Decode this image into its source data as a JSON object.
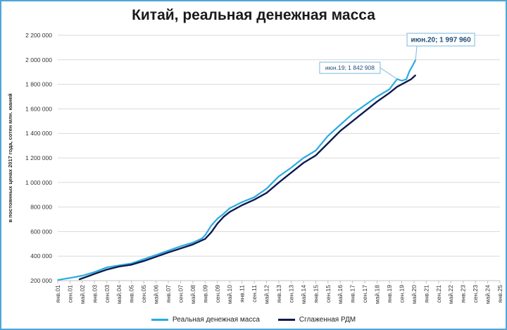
{
  "title": "Китай, реальная денежная масса",
  "colors": {
    "frame": "#4ea6d8",
    "series_raw": "#29abe2",
    "series_smooth": "#0d1b4f",
    "annotation_text": "#1f4e79"
  },
  "chart_data": {
    "type": "line",
    "title": "Китай, реальная денежная масса",
    "ylabel": "в постоянных ценах 2017 года, сотен млн. юаней",
    "xlabel": "",
    "ylim": [
      200000,
      2200000
    ],
    "y_ticks": [
      "200 000",
      "400 000",
      "600 000",
      "800 000",
      "1 000 000",
      "1 200 000",
      "1 400 000",
      "1 600 000",
      "1 800 000",
      "2 000 000",
      "2 200 000"
    ],
    "x_range": [
      "2001-01",
      "2025-01"
    ],
    "x_ticks": [
      "янв.01",
      "сен.01",
      "май.02",
      "янв.03",
      "сен.03",
      "май.04",
      "янв.05",
      "сен.05",
      "май.06",
      "янв.07",
      "сен.07",
      "май.08",
      "янв.09",
      "сен.09",
      "май.10",
      "янв.11",
      "сен.11",
      "май.12",
      "янв.13",
      "сен.13",
      "май.14",
      "янв.15",
      "сен.15",
      "май.16",
      "янв.17",
      "сен.17",
      "май.18",
      "янв.19",
      "сен.19",
      "май.20",
      "янв.21",
      "сен.21",
      "май.22",
      "янв.23",
      "сен.23",
      "май.24",
      "янв.25"
    ],
    "grid": "horizontal",
    "legend_position": "bottom",
    "series": [
      {
        "name": "Реальная денежная масса",
        "color": "#29abe2",
        "points": [
          [
            "2001-01",
            205000
          ],
          [
            "2001-09",
            222000
          ],
          [
            "2002-05",
            240000
          ],
          [
            "2003-01",
            270000
          ],
          [
            "2003-09",
            308000
          ],
          [
            "2004-05",
            325000
          ],
          [
            "2005-01",
            340000
          ],
          [
            "2005-09",
            375000
          ],
          [
            "2006-05",
            410000
          ],
          [
            "2007-01",
            445000
          ],
          [
            "2007-09",
            480000
          ],
          [
            "2008-05",
            510000
          ],
          [
            "2008-11",
            545000
          ],
          [
            "2009-01",
            570000
          ],
          [
            "2009-05",
            650000
          ],
          [
            "2009-09",
            705000
          ],
          [
            "2010-01",
            745000
          ],
          [
            "2010-05",
            790000
          ],
          [
            "2011-01",
            840000
          ],
          [
            "2011-09",
            880000
          ],
          [
            "2012-05",
            950000
          ],
          [
            "2013-01",
            1050000
          ],
          [
            "2013-09",
            1120000
          ],
          [
            "2014-05",
            1200000
          ],
          [
            "2015-01",
            1260000
          ],
          [
            "2015-09",
            1380000
          ],
          [
            "2016-05",
            1470000
          ],
          [
            "2017-01",
            1560000
          ],
          [
            "2017-09",
            1630000
          ],
          [
            "2018-05",
            1700000
          ],
          [
            "2019-01",
            1760000
          ],
          [
            "2019-06",
            1842908
          ],
          [
            "2019-09",
            1830000
          ],
          [
            "2019-12",
            1840000
          ],
          [
            "2020-02",
            1905000
          ],
          [
            "2020-04",
            1950000
          ],
          [
            "2020-06",
            1997960
          ]
        ]
      },
      {
        "name": "Сглаженная РДМ",
        "color": "#0d1b4f",
        "points": [
          [
            "2002-03",
            210000
          ],
          [
            "2003-01",
            255000
          ],
          [
            "2003-09",
            290000
          ],
          [
            "2004-05",
            315000
          ],
          [
            "2005-01",
            330000
          ],
          [
            "2005-09",
            360000
          ],
          [
            "2006-05",
            395000
          ],
          [
            "2007-01",
            430000
          ],
          [
            "2007-09",
            462000
          ],
          [
            "2008-05",
            495000
          ],
          [
            "2009-01",
            540000
          ],
          [
            "2009-05",
            595000
          ],
          [
            "2009-09",
            665000
          ],
          [
            "2010-01",
            720000
          ],
          [
            "2010-05",
            760000
          ],
          [
            "2011-01",
            815000
          ],
          [
            "2011-09",
            860000
          ],
          [
            "2012-05",
            915000
          ],
          [
            "2013-01",
            1000000
          ],
          [
            "2013-09",
            1080000
          ],
          [
            "2014-05",
            1160000
          ],
          [
            "2015-01",
            1220000
          ],
          [
            "2015-09",
            1320000
          ],
          [
            "2016-05",
            1420000
          ],
          [
            "2017-01",
            1500000
          ],
          [
            "2017-09",
            1580000
          ],
          [
            "2018-05",
            1660000
          ],
          [
            "2019-01",
            1730000
          ],
          [
            "2019-06",
            1780000
          ],
          [
            "2019-12",
            1820000
          ],
          [
            "2020-03",
            1840000
          ],
          [
            "2020-06",
            1875000
          ]
        ]
      }
    ],
    "annotations": [
      {
        "label": "июн.19; 1 842 908",
        "x": "2019-06",
        "y": 1842908,
        "emphasis": false
      },
      {
        "label": "июн.20; 1 997 960",
        "x": "2020-06",
        "y": 1997960,
        "emphasis": true
      }
    ]
  },
  "legend": [
    {
      "label": "Реальная денежная масса",
      "color": "#29abe2"
    },
    {
      "label": "Сглаженная РДМ",
      "color": "#0d1b4f"
    }
  ]
}
